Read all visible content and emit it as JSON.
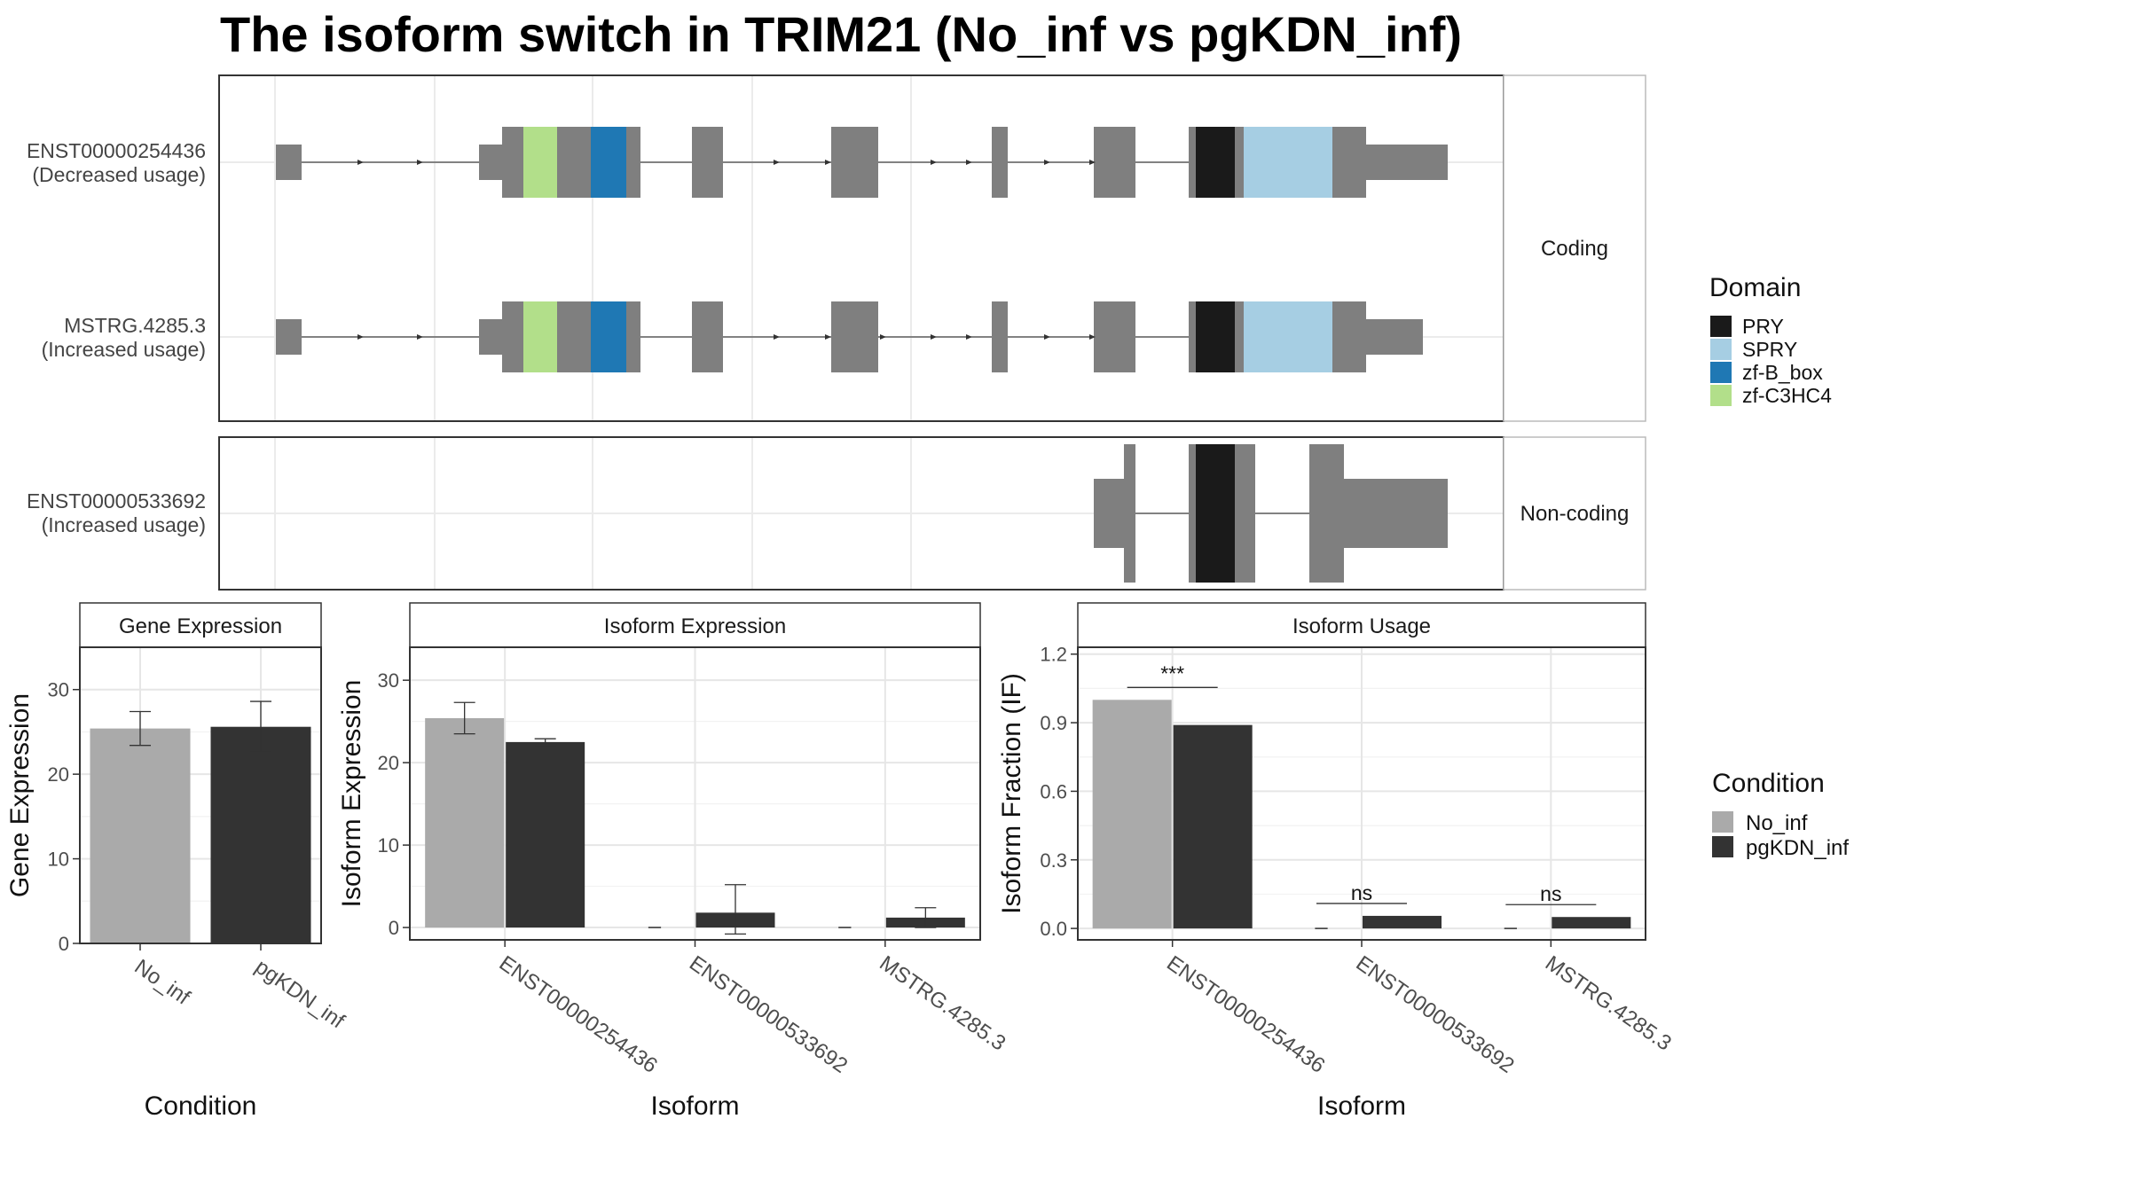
{
  "title": "The isoform switch in TRIM21 (No_inf vs pgKDN_inf)",
  "chart_data": [
    {
      "type": "isoform-structure",
      "panels": [
        {
          "strip_label": "Coding",
          "tracks": [
            {
              "id": "ENST00000254436",
              "usage": "(Decreased usage)"
            },
            {
              "id": "MSTRG.4285.3",
              "usage": "(Increased usage)"
            }
          ]
        },
        {
          "strip_label": "Non-coding",
          "tracks": [
            {
              "id": "ENST00000533692",
              "usage": "(Increased usage)"
            }
          ]
        }
      ],
      "legend": {
        "title": "Domain",
        "items": [
          {
            "label": "PRY",
            "color": "#1a1a1a"
          },
          {
            "label": "SPRY",
            "color": "#a6cee3"
          },
          {
            "label": "zf-B_box",
            "color": "#1f78b4"
          },
          {
            "label": "zf-C3HC4",
            "color": "#b2df8a"
          }
        ]
      },
      "exon_color": "#7f7f7f"
    },
    {
      "type": "bar",
      "strip_label": "Gene Expression",
      "xlabel": "Condition",
      "ylabel": "Gene Expression",
      "categories": [
        "No_inf",
        "pgKDN_inf"
      ],
      "values": [
        25.4,
        25.6
      ],
      "errors": [
        2.0,
        3.0
      ],
      "ylim": [
        0,
        35
      ],
      "yticks": [
        0,
        10,
        20,
        30
      ]
    },
    {
      "type": "bar",
      "strip_label": "Isoform Expression",
      "xlabel": "Isoform",
      "ylabel": "Isoform Expression",
      "categories": [
        "ENST00000254436",
        "ENST00000533692",
        "MSTRG.4285.3"
      ],
      "series": [
        {
          "name": "No_inf",
          "values": [
            25.4,
            0.0,
            0.0
          ],
          "errors": [
            1.9,
            0,
            0
          ]
        },
        {
          "name": "pgKDN_inf",
          "values": [
            22.5,
            1.8,
            1.2
          ],
          "errors": [
            0.4,
            3.4,
            1.2
          ]
        }
      ],
      "ylim": [
        -1.5,
        34
      ],
      "yticks": [
        0,
        10,
        20,
        30
      ]
    },
    {
      "type": "bar",
      "strip_label": "Isoform Usage",
      "xlabel": "Isoform",
      "ylabel": "Isoform Fraction (IF)",
      "categories": [
        "ENST00000254436",
        "ENST00000533692",
        "MSTRG.4285.3"
      ],
      "series": [
        {
          "name": "No_inf",
          "values": [
            1.0,
            0.0,
            0.0
          ]
        },
        {
          "name": "pgKDN_inf",
          "values": [
            0.89,
            0.055,
            0.05
          ]
        }
      ],
      "significance": [
        "***",
        "ns",
        "ns"
      ],
      "ylim": [
        -0.05,
        1.23
      ],
      "yticks": [
        0.0,
        0.3,
        0.6,
        0.9,
        1.2
      ],
      "ytick_labels": [
        "0.0",
        "0.3",
        "0.6",
        "0.9",
        "1.2"
      ]
    }
  ],
  "condition_legend": {
    "title": "Condition",
    "items": [
      {
        "label": "No_inf",
        "color": "#aaaaaa"
      },
      {
        "label": "pgKDN_inf",
        "color": "#333333"
      }
    ]
  }
}
